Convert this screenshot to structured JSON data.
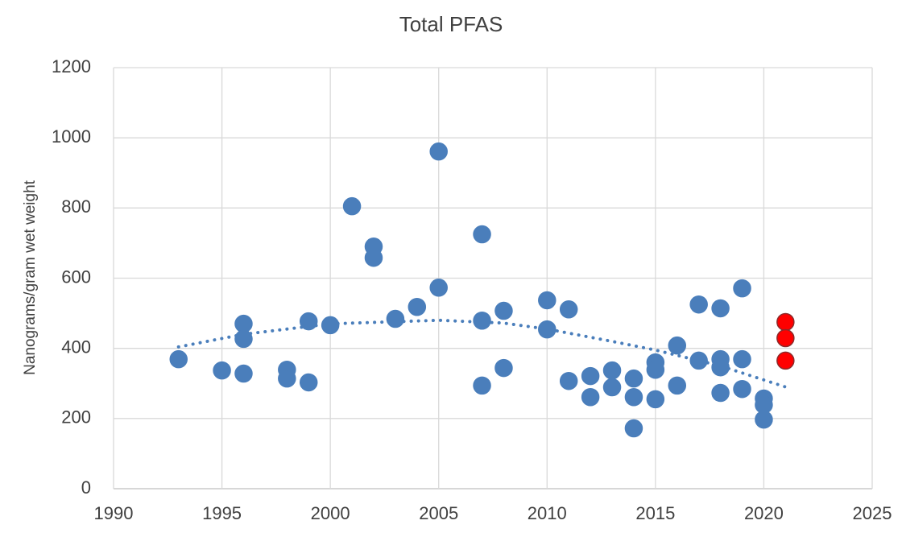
{
  "chart_data": {
    "type": "scatter",
    "title": "Total PFAS",
    "y_label": "Nanograms/gram wet weight",
    "xlim": [
      1990,
      2025
    ],
    "xticks": [
      1990,
      1995,
      2000,
      2005,
      2010,
      2015,
      2020,
      2025
    ],
    "ylim": [
      0,
      1200
    ],
    "yticks": [
      0,
      200,
      400,
      600,
      800,
      1000,
      1200
    ],
    "grid": true,
    "series": [
      {
        "color": "#4a7ebb",
        "x": [
          1993,
          1995,
          1996,
          1996,
          1996,
          1998,
          1998,
          1999,
          1999,
          2000,
          2001,
          2002,
          2002,
          2003,
          2004,
          2005,
          2005,
          2007,
          2007,
          2007,
          2008,
          2008,
          2010,
          2010,
          2011,
          2011,
          2012,
          2012,
          2013,
          2013,
          2014,
          2014,
          2014,
          2015,
          2015,
          2015,
          2016,
          2016,
          2017,
          2017,
          2018,
          2018,
          2018,
          2018,
          2019,
          2019,
          2019,
          2020,
          2020,
          2020
        ],
        "values": [
          369,
          337,
          470,
          427,
          328,
          339,
          314,
          477,
          303,
          466,
          805,
          690,
          658,
          484,
          518,
          961,
          573,
          725,
          479,
          294,
          507,
          344,
          537,
          454,
          511,
          307,
          321,
          261,
          337,
          289,
          314,
          261,
          172,
          360,
          339,
          255,
          408,
          294,
          525,
          365,
          514,
          369,
          346,
          273,
          571,
          369,
          284,
          257,
          239,
          197
        ]
      },
      {
        "color": "#ff0000",
        "x": [
          2021,
          2021,
          2021
        ],
        "values": [
          475,
          429,
          365
        ]
      }
    ],
    "trendline": {
      "color": "#4a7ebb",
      "style": "dotted",
      "x": [
        1993,
        1996,
        2000,
        2005,
        2008,
        2010,
        2013,
        2015,
        2018,
        2021
      ],
      "values": [
        404,
        440,
        470,
        480,
        472,
        455,
        420,
        395,
        350,
        290
      ]
    }
  }
}
